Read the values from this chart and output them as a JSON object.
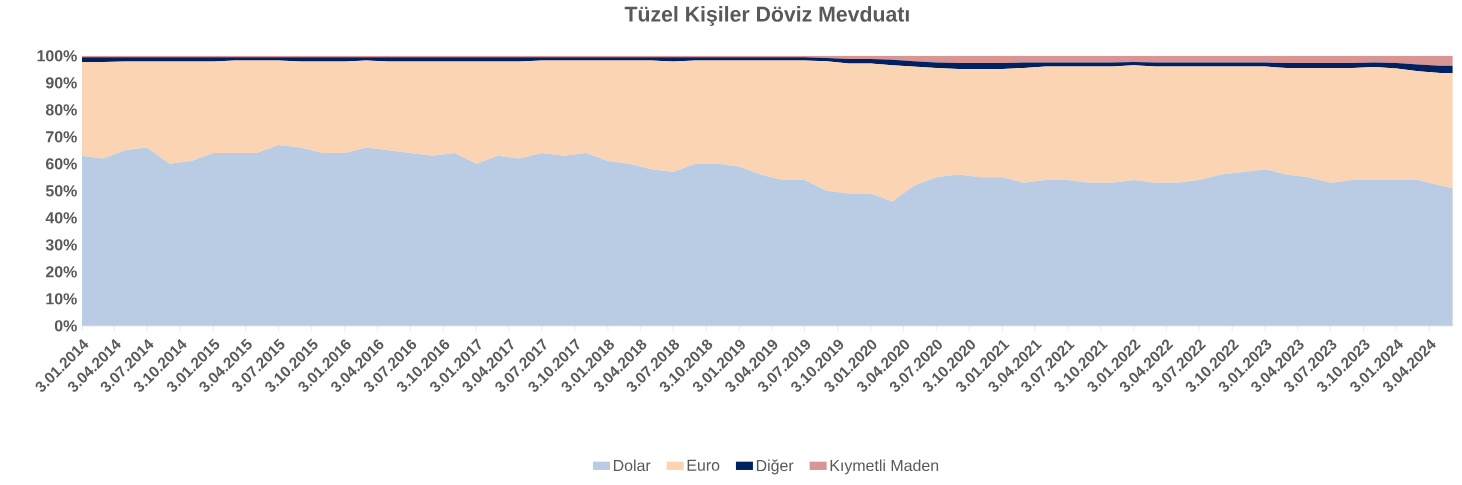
{
  "chart_data": {
    "type": "area",
    "title": "Tüzel Kişiler Döviz Mevduatı",
    "stacked": true,
    "legend": "bottom",
    "x": [
      "2014-01-03",
      "2014-03-03",
      "2014-05-03",
      "2014-07-03",
      "2014-09-03",
      "2014-11-03",
      "2015-01-03",
      "2015-03-03",
      "2015-05-03",
      "2015-07-03",
      "2015-09-03",
      "2015-11-03",
      "2016-01-03",
      "2016-03-03",
      "2016-05-03",
      "2016-07-03",
      "2016-09-03",
      "2016-11-03",
      "2017-01-03",
      "2017-03-03",
      "2017-05-03",
      "2017-07-03",
      "2017-09-03",
      "2017-11-03",
      "2018-01-03",
      "2018-03-03",
      "2018-05-03",
      "2018-07-03",
      "2018-09-03",
      "2018-11-03",
      "2019-01-03",
      "2019-03-03",
      "2019-05-03",
      "2019-07-03",
      "2019-09-03",
      "2019-11-03",
      "2020-01-03",
      "2020-03-03",
      "2020-05-03",
      "2020-07-03",
      "2020-09-03",
      "2020-11-03",
      "2021-01-03",
      "2021-03-03",
      "2021-05-03",
      "2021-07-03",
      "2021-09-03",
      "2021-11-03",
      "2022-01-03",
      "2022-03-03",
      "2022-05-03",
      "2022-07-03",
      "2022-09-03",
      "2022-11-03",
      "2023-01-03",
      "2023-03-03",
      "2023-05-03",
      "2023-07-03",
      "2023-09-03",
      "2023-11-03",
      "2024-01-03",
      "2024-03-03",
      "2024-05-03",
      "2024-06-07"
    ],
    "series": [
      {
        "name": "Dolar",
        "color": "#b9cce4",
        "values": [
          63,
          62,
          65,
          66,
          60,
          61,
          64,
          64,
          64,
          67,
          66,
          64,
          64,
          66,
          65,
          64,
          63,
          64,
          60,
          63,
          62,
          64,
          63,
          64,
          61,
          60,
          58,
          57,
          60,
          60,
          59,
          56,
          54,
          54,
          50,
          49,
          49,
          46,
          52,
          55,
          56,
          55,
          55,
          53,
          54,
          54,
          53,
          53,
          54,
          53,
          53,
          54,
          56,
          57,
          58,
          56,
          55,
          53,
          54,
          54,
          54,
          54,
          52,
          51
        ]
      },
      {
        "name": "Euro",
        "color": "#fbd4b4",
        "values": [
          34.7,
          35.7,
          32.9,
          31.9,
          37.9,
          36.9,
          33.9,
          34.3,
          34.3,
          31.3,
          31.9,
          33.9,
          33.9,
          32.3,
          32.9,
          33.9,
          34.9,
          33.9,
          37.9,
          34.9,
          35.9,
          34.3,
          35.3,
          34.3,
          37.3,
          38.3,
          40.3,
          40.9,
          38.3,
          38.3,
          39.3,
          42.3,
          44.3,
          44.3,
          48,
          48.2,
          48.2,
          50.5,
          44,
          40.5,
          39.1,
          40.1,
          40.1,
          42.5,
          42,
          42,
          43,
          43,
          42.5,
          43,
          43,
          42,
          40,
          39,
          38,
          39.5,
          40.5,
          42.5,
          41.5,
          41.9,
          41.3,
          40.3,
          41.6,
          42.6
        ]
      },
      {
        "name": "Diğer",
        "color": "#002060",
        "values": [
          1.8,
          1.8,
          1.6,
          1.6,
          1.6,
          1.6,
          1.6,
          1.2,
          1.2,
          1.2,
          1.6,
          1.6,
          1.6,
          1.2,
          1.6,
          1.6,
          1.6,
          1.6,
          1.6,
          1.6,
          1.6,
          1.2,
          1.2,
          1.2,
          1.2,
          1.2,
          1.2,
          1.6,
          1.2,
          1.2,
          1.2,
          1.2,
          1.2,
          1.2,
          1.2,
          1.6,
          1.6,
          2.0,
          2.0,
          2.0,
          2.2,
          2.2,
          2.2,
          2.0,
          1.5,
          1.5,
          1.5,
          1.5,
          1.2,
          1.5,
          1.5,
          1.5,
          1.5,
          1.5,
          1.5,
          1.8,
          1.8,
          1.8,
          1.8,
          1.6,
          2.0,
          2.5,
          2.7,
          2.7
        ]
      },
      {
        "name": "Kıymetli Maden",
        "color": "#d99594",
        "values": [
          0.5,
          0.5,
          0.5,
          0.5,
          0.5,
          0.5,
          0.5,
          0.5,
          0.5,
          0.5,
          0.5,
          0.5,
          0.5,
          0.5,
          0.5,
          0.5,
          0.5,
          0.5,
          0.5,
          0.5,
          0.5,
          0.5,
          0.5,
          0.5,
          0.5,
          0.5,
          0.5,
          0.5,
          0.5,
          0.5,
          0.5,
          0.5,
          0.5,
          0.5,
          0.8,
          1.2,
          1.2,
          1.5,
          2.0,
          2.5,
          2.7,
          2.7,
          2.7,
          2.5,
          2.5,
          2.5,
          2.5,
          2.5,
          2.3,
          2.5,
          2.5,
          2.5,
          2.5,
          2.5,
          2.5,
          2.7,
          2.7,
          2.7,
          2.7,
          2.5,
          2.7,
          3.2,
          3.7,
          3.7
        ]
      }
    ],
    "xlim": [
      "2014-01-03",
      "2024-06-07"
    ],
    "ylim": [
      0,
      100
    ],
    "yticks": [
      {
        "value": 0,
        "label": "0%"
      },
      {
        "value": 10,
        "label": "10%"
      },
      {
        "value": 20,
        "label": "20%"
      },
      {
        "value": 30,
        "label": "30%"
      },
      {
        "value": 40,
        "label": "40%"
      },
      {
        "value": 50,
        "label": "50%"
      },
      {
        "value": 60,
        "label": "60%"
      },
      {
        "value": 70,
        "label": "70%"
      },
      {
        "value": 80,
        "label": "80%"
      },
      {
        "value": 90,
        "label": "90%"
      },
      {
        "value": 100,
        "label": "100%"
      }
    ],
    "xticks": [
      {
        "value": "2014-01-03",
        "label": "3.01.2014"
      },
      {
        "value": "2014-04-03",
        "label": "3.04.2014"
      },
      {
        "value": "2014-07-03",
        "label": "3.07.2014"
      },
      {
        "value": "2014-10-03",
        "label": "3.10.2014"
      },
      {
        "value": "2015-01-03",
        "label": "3.01.2015"
      },
      {
        "value": "2015-04-03",
        "label": "3.04.2015"
      },
      {
        "value": "2015-07-03",
        "label": "3.07.2015"
      },
      {
        "value": "2015-10-03",
        "label": "3.10.2015"
      },
      {
        "value": "2016-01-03",
        "label": "3.01.2016"
      },
      {
        "value": "2016-04-03",
        "label": "3.04.2016"
      },
      {
        "value": "2016-07-03",
        "label": "3.07.2016"
      },
      {
        "value": "2016-10-03",
        "label": "3.10.2016"
      },
      {
        "value": "2017-01-03",
        "label": "3.01.2017"
      },
      {
        "value": "2017-04-03",
        "label": "3.04.2017"
      },
      {
        "value": "2017-07-03",
        "label": "3.07.2017"
      },
      {
        "value": "2017-10-03",
        "label": "3.10.2017"
      },
      {
        "value": "2018-01-03",
        "label": "3.01.2018"
      },
      {
        "value": "2018-04-03",
        "label": "3.04.2018"
      },
      {
        "value": "2018-07-03",
        "label": "3.07.2018"
      },
      {
        "value": "2018-10-03",
        "label": "3.10.2018"
      },
      {
        "value": "2019-01-03",
        "label": "3.01.2019"
      },
      {
        "value": "2019-04-03",
        "label": "3.04.2019"
      },
      {
        "value": "2019-07-03",
        "label": "3.07.2019"
      },
      {
        "value": "2019-10-03",
        "label": "3.10.2019"
      },
      {
        "value": "2020-01-03",
        "label": "3.01.2020"
      },
      {
        "value": "2020-04-03",
        "label": "3.04.2020"
      },
      {
        "value": "2020-07-03",
        "label": "3.07.2020"
      },
      {
        "value": "2020-10-03",
        "label": "3.10.2020"
      },
      {
        "value": "2021-01-03",
        "label": "3.01.2021"
      },
      {
        "value": "2021-04-03",
        "label": "3.04.2021"
      },
      {
        "value": "2021-07-03",
        "label": "3.07.2021"
      },
      {
        "value": "2021-10-03",
        "label": "3.10.2021"
      },
      {
        "value": "2022-01-03",
        "label": "3.01.2022"
      },
      {
        "value": "2022-04-03",
        "label": "3.04.2022"
      },
      {
        "value": "2022-07-03",
        "label": "3.07.2022"
      },
      {
        "value": "2022-10-03",
        "label": "3.10.2022"
      },
      {
        "value": "2023-01-03",
        "label": "3.01.2023"
      },
      {
        "value": "2023-04-03",
        "label": "3.04.2023"
      },
      {
        "value": "2023-07-03",
        "label": "3.07.2023"
      },
      {
        "value": "2023-10-03",
        "label": "3.10.2023"
      },
      {
        "value": "2024-01-03",
        "label": "3.01.2024"
      },
      {
        "value": "2024-04-03",
        "label": "3.04.2024"
      }
    ]
  }
}
